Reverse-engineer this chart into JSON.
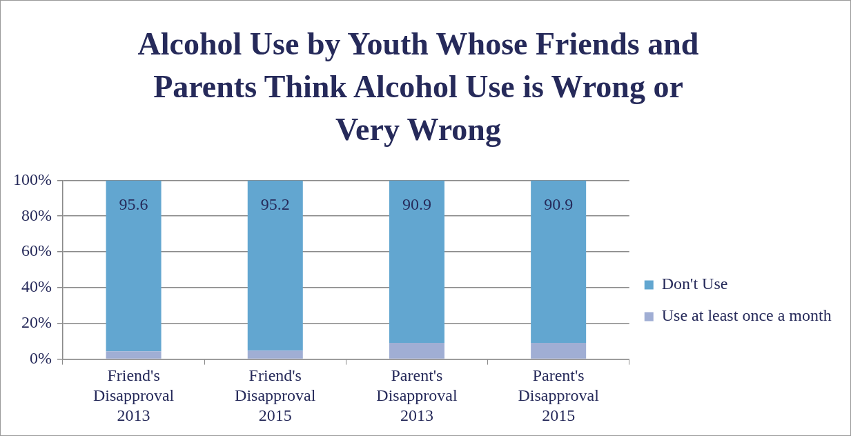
{
  "chart_data": {
    "type": "bar",
    "title": "Alcohol Use by Youth Whose Friends and Parents Think Alcohol Use is Wrong or Very Wrong",
    "categories": [
      "Friend's Disapproval 2013",
      "Friend's Disapproval 2015",
      "Parent's Disapproval 2013",
      "Parent's Disapproval 2015"
    ],
    "stacked": true,
    "series": [
      {
        "name": "Use at least once a month",
        "color": "#a0aed4",
        "values": [
          4.4,
          4.8,
          9.1,
          9.1
        ]
      },
      {
        "name": "Don't Use",
        "color": "#62a6d0",
        "values": [
          95.6,
          95.2,
          90.9,
          90.9
        ],
        "value_labels": [
          "95.6",
          "95.2",
          "90.9",
          "90.9"
        ]
      }
    ],
    "ylim": [
      0,
      100
    ],
    "yticks": [
      {
        "value": 0,
        "label": "0%"
      },
      {
        "value": 20,
        "label": "20%"
      },
      {
        "value": 40,
        "label": "40%"
      },
      {
        "value": 60,
        "label": "60%"
      },
      {
        "value": 80,
        "label": "80%"
      },
      {
        "value": 100,
        "label": "100%"
      }
    ],
    "grid": "y",
    "legend": "right"
  }
}
